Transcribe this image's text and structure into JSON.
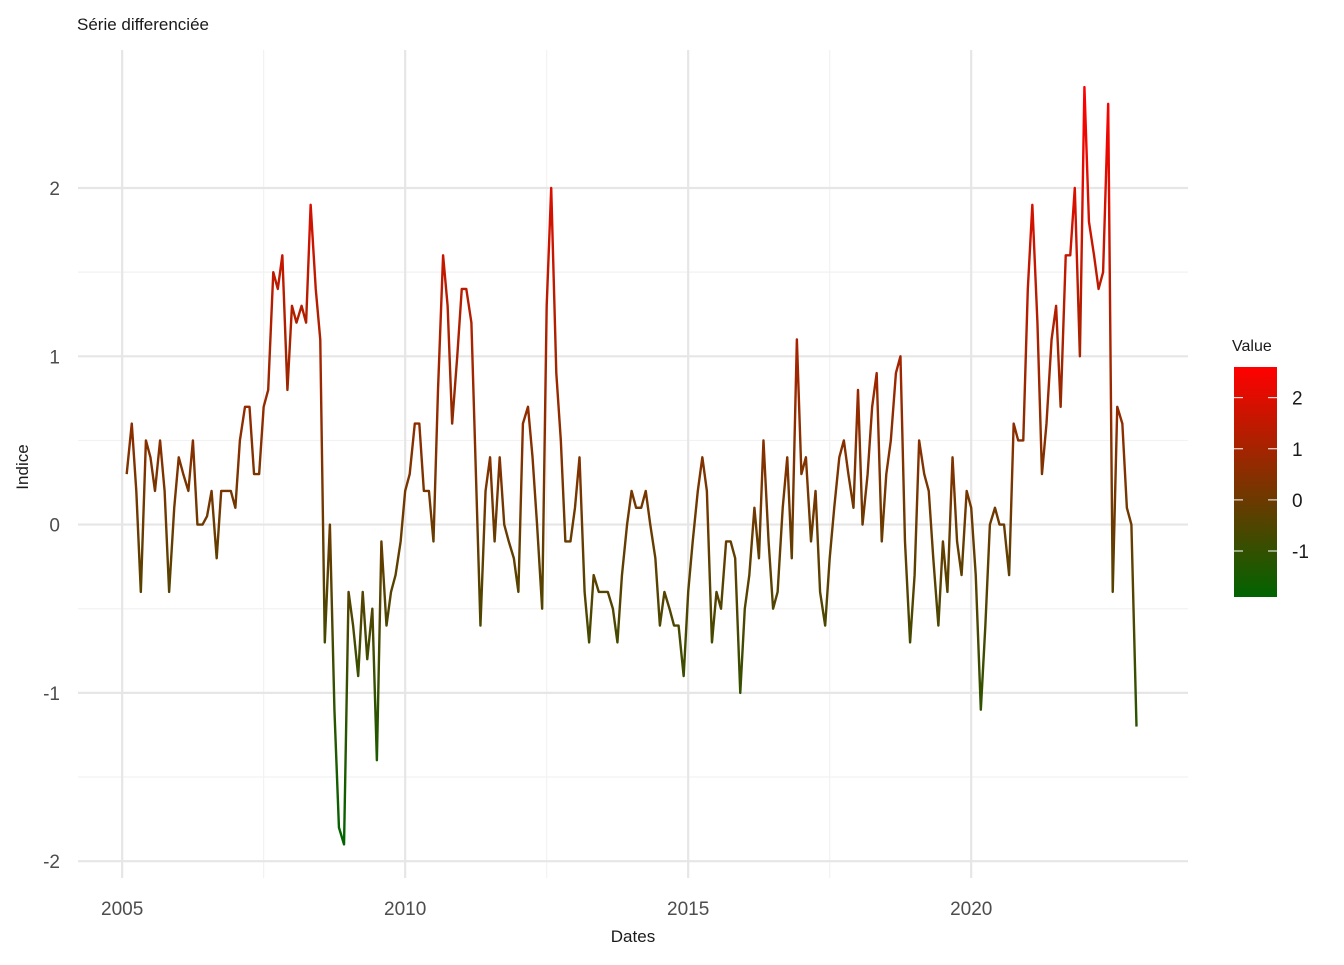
{
  "chart_data": {
    "type": "line",
    "title": "Série differenciée",
    "x_label": "Dates",
    "y_label": "Indice",
    "legend_title": "Value",
    "color_scale": {
      "low": "#006400",
      "high": "#ff0000"
    },
    "legend_ticks": [
      -1,
      0,
      1,
      2
    ],
    "grid": true,
    "xlim": [
      2004.22,
      2023.83
    ],
    "ylim": [
      -2.1,
      2.82
    ],
    "xticks": [
      2005,
      2010,
      2015,
      2020
    ],
    "yticks": [
      -2,
      -1,
      0,
      1,
      2
    ],
    "x": [
      2005.08,
      2005.17,
      2005.25,
      2005.33,
      2005.42,
      2005.5,
      2005.58,
      2005.67,
      2005.75,
      2005.83,
      2005.92,
      2006.0,
      2006.08,
      2006.17,
      2006.25,
      2006.33,
      2006.42,
      2006.5,
      2006.58,
      2006.67,
      2006.75,
      2006.83,
      2006.92,
      2007.0,
      2007.08,
      2007.17,
      2007.25,
      2007.33,
      2007.42,
      2007.5,
      2007.58,
      2007.67,
      2007.75,
      2007.83,
      2007.92,
      2008.0,
      2008.08,
      2008.17,
      2008.25,
      2008.33,
      2008.42,
      2008.5,
      2008.58,
      2008.67,
      2008.75,
      2008.83,
      2008.92,
      2009.0,
      2009.08,
      2009.17,
      2009.25,
      2009.33,
      2009.42,
      2009.5,
      2009.58,
      2009.67,
      2009.75,
      2009.83,
      2009.92,
      2010.0,
      2010.08,
      2010.17,
      2010.25,
      2010.33,
      2010.42,
      2010.5,
      2010.58,
      2010.67,
      2010.75,
      2010.83,
      2010.92,
      2011.0,
      2011.08,
      2011.17,
      2011.25,
      2011.33,
      2011.42,
      2011.5,
      2011.58,
      2011.67,
      2011.75,
      2011.83,
      2011.92,
      2012.0,
      2012.08,
      2012.17,
      2012.25,
      2012.33,
      2012.42,
      2012.5,
      2012.58,
      2012.67,
      2012.75,
      2012.83,
      2012.92,
      2013.0,
      2013.08,
      2013.17,
      2013.25,
      2013.33,
      2013.42,
      2013.5,
      2013.58,
      2013.67,
      2013.75,
      2013.83,
      2013.92,
      2014.0,
      2014.08,
      2014.17,
      2014.25,
      2014.33,
      2014.42,
      2014.5,
      2014.58,
      2014.67,
      2014.75,
      2014.83,
      2014.92,
      2015.0,
      2015.08,
      2015.17,
      2015.25,
      2015.33,
      2015.42,
      2015.5,
      2015.58,
      2015.67,
      2015.75,
      2015.83,
      2015.92,
      2016.0,
      2016.08,
      2016.17,
      2016.25,
      2016.33,
      2016.42,
      2016.5,
      2016.58,
      2016.67,
      2016.75,
      2016.83,
      2016.92,
      2017.0,
      2017.08,
      2017.17,
      2017.25,
      2017.33,
      2017.42,
      2017.5,
      2017.58,
      2017.67,
      2017.75,
      2017.83,
      2017.92,
      2018.0,
      2018.08,
      2018.17,
      2018.25,
      2018.33,
      2018.42,
      2018.5,
      2018.58,
      2018.67,
      2018.75,
      2018.83,
      2018.92,
      2019.0,
      2019.08,
      2019.17,
      2019.25,
      2019.33,
      2019.42,
      2019.5,
      2019.58,
      2019.67,
      2019.75,
      2019.83,
      2019.92,
      2020.0,
      2020.08,
      2020.17,
      2020.25,
      2020.33,
      2020.42,
      2020.5,
      2020.58,
      2020.67,
      2020.75,
      2020.83,
      2020.92,
      2021.0,
      2021.08,
      2021.17,
      2021.25,
      2021.33,
      2021.42,
      2021.5,
      2021.58,
      2021.67,
      2021.75,
      2021.83,
      2021.92,
      2022.0,
      2022.08,
      2022.17,
      2022.25,
      2022.33,
      2022.42,
      2022.5,
      2022.58,
      2022.67,
      2022.75,
      2022.83,
      2022.92
    ],
    "values": [
      0.3,
      0.6,
      0.2,
      -0.4,
      0.5,
      0.4,
      0.2,
      0.5,
      0.2,
      -0.4,
      0.1,
      0.4,
      0.3,
      0.2,
      0.5,
      0.0,
      0.0,
      0.05,
      0.2,
      -0.2,
      0.2,
      0.2,
      0.2,
      0.1,
      0.5,
      0.7,
      0.7,
      0.3,
      0.3,
      0.7,
      0.8,
      1.5,
      1.4,
      1.6,
      0.8,
      1.3,
      1.2,
      1.3,
      1.2,
      1.9,
      1.4,
      1.1,
      -0.7,
      0.0,
      -1.1,
      -1.8,
      -1.9,
      -0.4,
      -0.6,
      -0.9,
      -0.4,
      -0.8,
      -0.5,
      -1.4,
      -0.1,
      -0.6,
      -0.4,
      -0.3,
      -0.1,
      0.2,
      0.3,
      0.6,
      0.6,
      0.2,
      0.2,
      -0.1,
      0.8,
      1.6,
      1.3,
      0.6,
      1.0,
      1.4,
      1.4,
      1.2,
      0.3,
      -0.6,
      0.2,
      0.4,
      -0.1,
      0.4,
      0.0,
      -0.1,
      -0.2,
      -0.4,
      0.6,
      0.7,
      0.4,
      0.0,
      -0.5,
      1.3,
      2.0,
      0.9,
      0.5,
      -0.1,
      -0.1,
      0.1,
      0.4,
      -0.4,
      -0.7,
      -0.3,
      -0.4,
      -0.4,
      -0.4,
      -0.5,
      -0.7,
      -0.3,
      0.0,
      0.2,
      0.1,
      0.1,
      0.2,
      0.0,
      -0.2,
      -0.6,
      -0.4,
      -0.5,
      -0.6,
      -0.6,
      -0.9,
      -0.4,
      -0.1,
      0.2,
      0.4,
      0.2,
      -0.7,
      -0.4,
      -0.5,
      -0.1,
      -0.1,
      -0.2,
      -1.0,
      -0.5,
      -0.3,
      0.1,
      -0.2,
      0.5,
      -0.1,
      -0.5,
      -0.4,
      0.1,
      0.4,
      -0.2,
      1.1,
      0.3,
      0.4,
      -0.1,
      0.2,
      -0.4,
      -0.6,
      -0.2,
      0.1,
      0.4,
      0.5,
      0.3,
      0.1,
      0.8,
      0.0,
      0.3,
      0.7,
      0.9,
      -0.1,
      0.3,
      0.5,
      0.9,
      1.0,
      -0.1,
      -0.7,
      -0.3,
      0.5,
      0.3,
      0.2,
      -0.2,
      -0.6,
      -0.1,
      -0.4,
      0.4,
      -0.1,
      -0.3,
      0.2,
      0.1,
      -0.3,
      -1.1,
      -0.6,
      0.0,
      0.1,
      0.0,
      0.0,
      -0.3,
      0.6,
      0.5,
      0.5,
      1.4,
      1.9,
      1.2,
      0.3,
      0.6,
      1.1,
      1.3,
      0.7,
      1.6,
      1.6,
      2.0,
      1.0,
      2.6,
      1.8,
      1.6,
      1.4,
      1.5,
      2.5,
      -0.4,
      0.7,
      0.6,
      0.1,
      0.0,
      -1.2
    ]
  }
}
